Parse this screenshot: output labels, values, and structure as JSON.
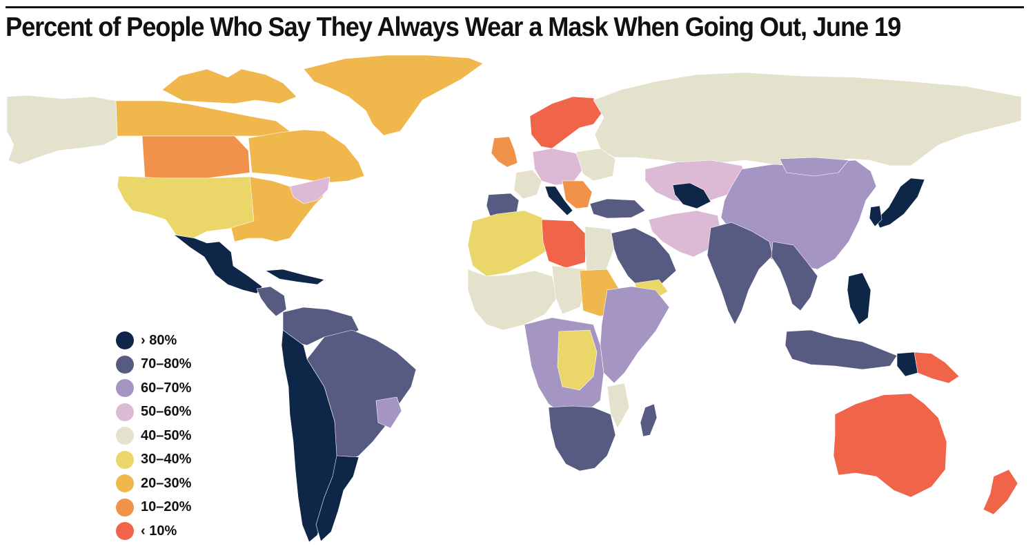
{
  "title": "Percent of People Who Say They Always Wear a Mask When Going Out, June 19",
  "legend": [
    {
      "key": "gt80",
      "label": "› 80%",
      "color": "#0e2748"
    },
    {
      "key": "70_80",
      "label": "70–80%",
      "color": "#575b82"
    },
    {
      "key": "60_70",
      "label": "60–70%",
      "color": "#a595c2"
    },
    {
      "key": "50_60",
      "label": "50–60%",
      "color": "#dcbad6"
    },
    {
      "key": "40_50",
      "label": "40–50%",
      "color": "#e4e2cc"
    },
    {
      "key": "30_40",
      "label": "30–40%",
      "color": "#ead669"
    },
    {
      "key": "20_30",
      "label": "20–30%",
      "color": "#f0b84c"
    },
    {
      "key": "10_20",
      "label": "10–20%",
      "color": "#f0924a"
    },
    {
      "key": "lt10",
      "label": "‹ 10%",
      "color": "#f0644a"
    }
  ]
}
